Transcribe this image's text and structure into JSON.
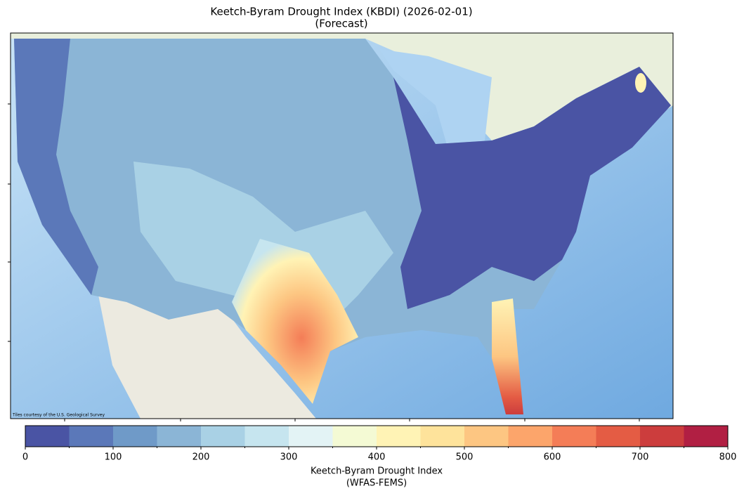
{
  "map": {
    "title": "Keetch-Byram Drought Index (KBDI) (2026-02-01)",
    "subtitle": "(Forecast)",
    "attribution": "Tiles courtesy of the U.S. Geological Survey"
  },
  "colorbar": {
    "lim": [
      0,
      800
    ],
    "bounds": [
      0,
      50,
      100,
      150,
      200,
      250,
      300,
      350,
      400,
      450,
      500,
      550,
      600,
      650,
      700,
      750,
      800
    ],
    "colors": [
      "#4a54a4",
      "#5b78b9",
      "#6f9ac8",
      "#8bb5d6",
      "#a9d1e5",
      "#c6e5ef",
      "#e3f3f5",
      "#f4fad4",
      "#fff3b5",
      "#fee39b",
      "#fdc682",
      "#fca56b",
      "#f47d57",
      "#e45c44",
      "#cc3d3d",
      "#b11f43"
    ],
    "ticks": [
      0,
      100,
      200,
      300,
      400,
      500,
      600,
      700,
      800
    ],
    "label": "Keetch-Byram Drought Index",
    "sublabel": "(WFAS-FEMS)"
  }
}
